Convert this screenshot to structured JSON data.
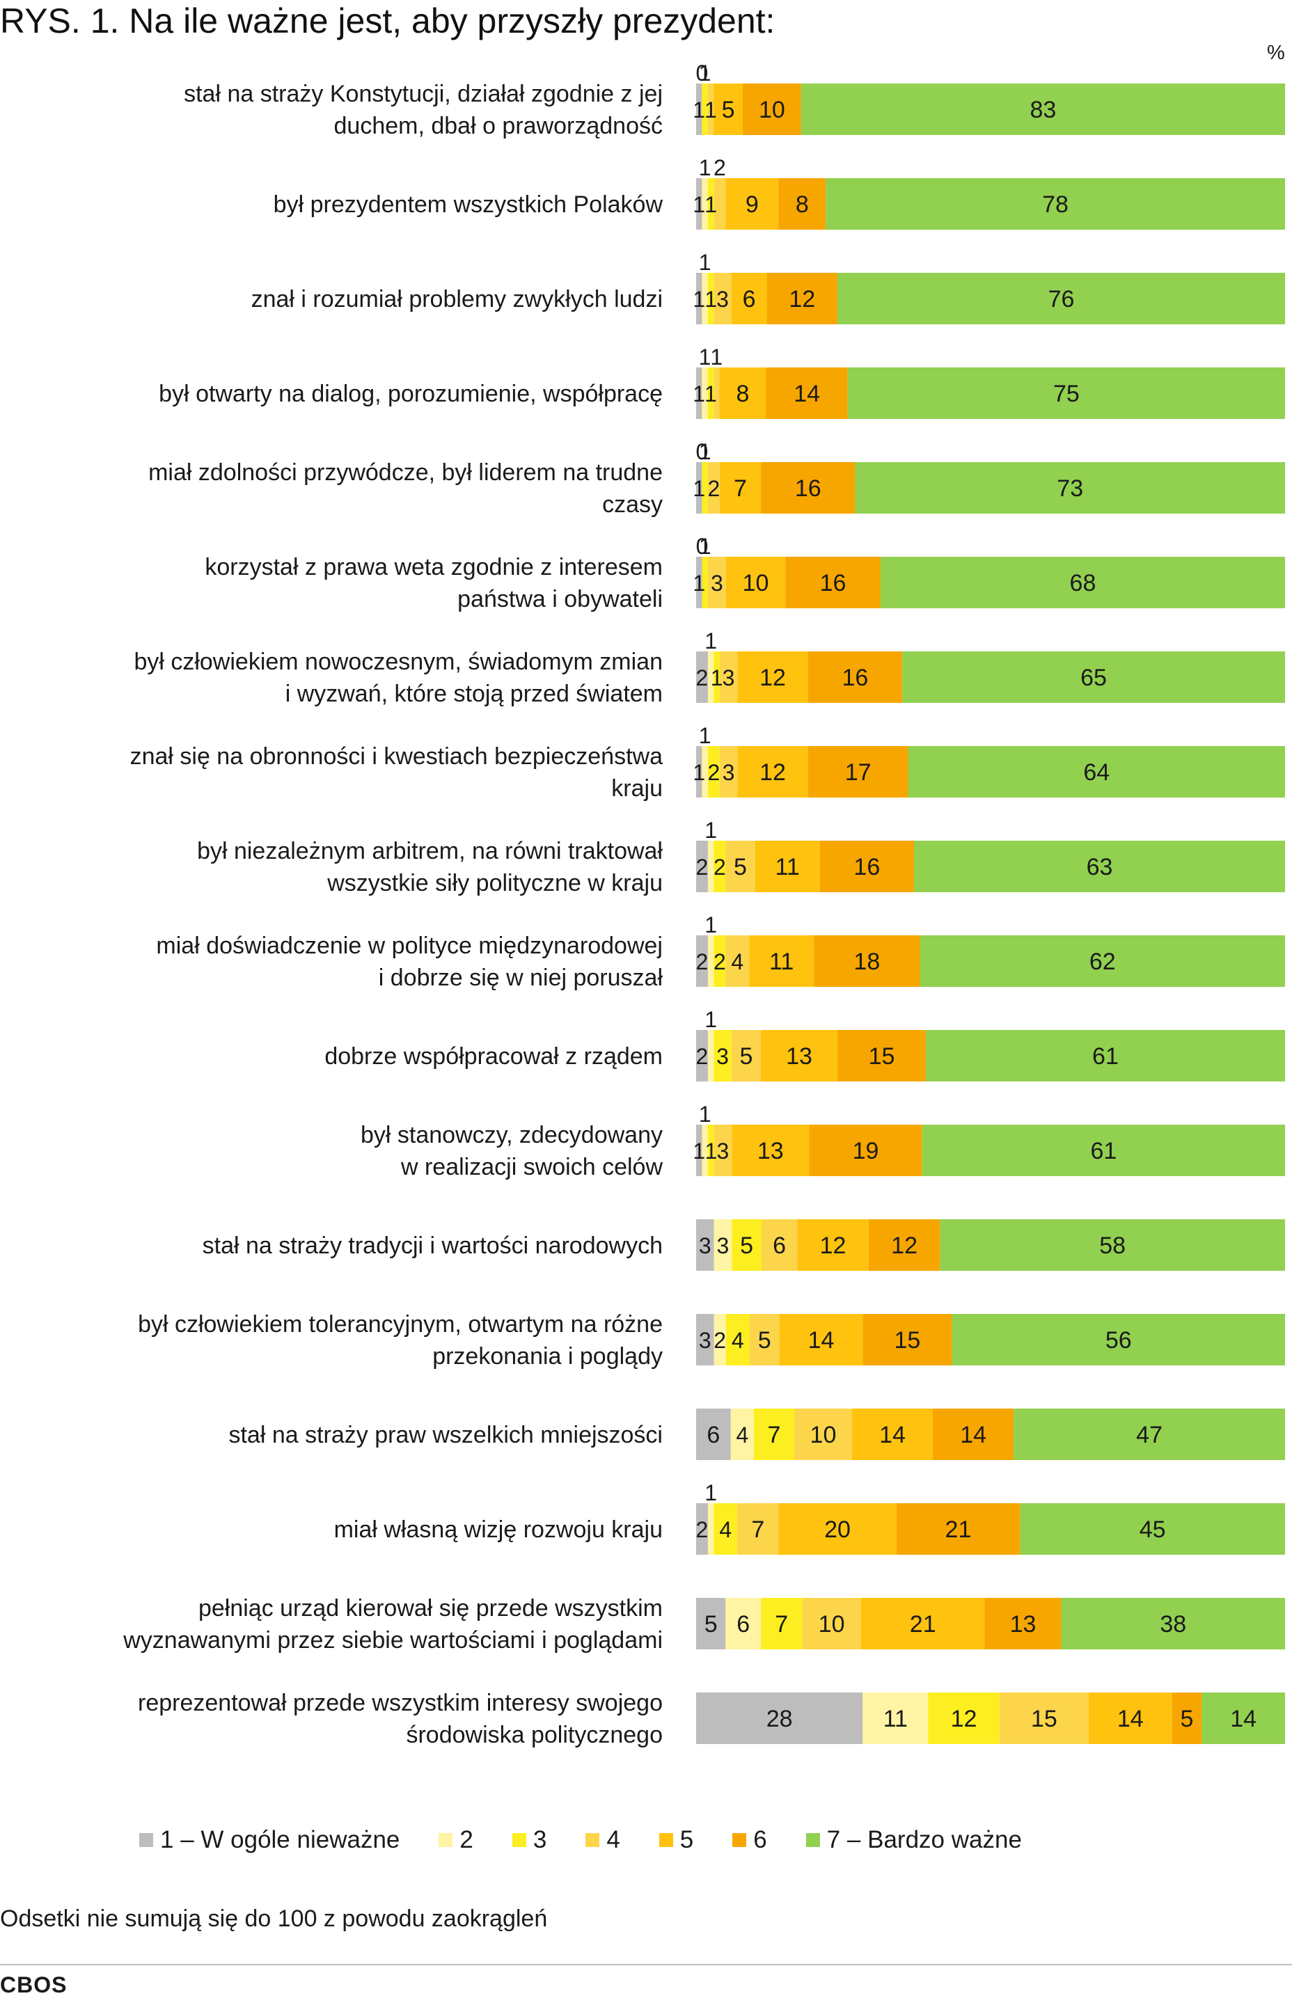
{
  "chart_data": {
    "type": "bar",
    "orientation": "horizontal-stacked-100",
    "title": "RYS. 1. Na ile ważne jest, aby przyszły prezydent:",
    "unit_label": "%",
    "legend": [
      {
        "name": "1 – W ogóle nieważne",
        "color": "#BDBDBD"
      },
      {
        "name": "2",
        "color": "#FFF4A3"
      },
      {
        "name": "3",
        "color": "#FCEE21"
      },
      {
        "name": "4",
        "color": "#FDD54B"
      },
      {
        "name": "5",
        "color": "#FFC20E"
      },
      {
        "name": "6",
        "color": "#F7A600"
      },
      {
        "name": "7 – Bardzo ważne",
        "color": "#92D050"
      }
    ],
    "categories": [
      [
        "stał na straży Konstytucji, działał zgodnie z jej",
        "duchem, dbał o praworządność"
      ],
      [
        "był prezydentem wszystkich Polaków"
      ],
      [
        "znał i rozumiał problemy zwykłych ludzi"
      ],
      [
        "był otwarty na dialog, porozumienie, współpracę"
      ],
      [
        "miał zdolności przywódcze, był liderem na trudne",
        "czasy"
      ],
      [
        "korzystał z prawa weta zgodnie z interesem",
        "państwa i obywateli"
      ],
      [
        "był człowiekiem nowoczesnym, świadomym zmian",
        "i wyzwań, które stoją przed światem"
      ],
      [
        "znał się na obronności i kwestiach bezpieczeństwa",
        "kraju"
      ],
      [
        "był niezależnym arbitrem, na równi traktował",
        "wszystkie siły polityczne w kraju"
      ],
      [
        "miał doświadczenie w polityce międzynarodowej",
        "i dobrze się w niej poruszał"
      ],
      [
        "dobrze współpracował z rządem"
      ],
      [
        "był stanowczy, zdecydowany",
        "w realizacji swoich celów"
      ],
      [
        "stał na straży tradycji i wartości narodowych"
      ],
      [
        "był człowiekiem tolerancyjnym, otwartym na różne",
        "przekonania i poglądy"
      ],
      [
        "stał na straży praw wszelkich mniejszości"
      ],
      [
        "miał własną wizję rozwoju kraju"
      ],
      [
        "pełniąc urząd kierował się przede wszystkim",
        "wyznawanymi przez siebie wartościami i poglądami"
      ],
      [
        "reprezentował przede wszystkim interesy swojego",
        "środowiska politycznego"
      ]
    ],
    "values": [
      [
        1,
        0,
        1,
        1,
        5,
        10,
        83
      ],
      [
        1,
        1,
        1,
        2,
        9,
        8,
        78
      ],
      [
        1,
        1,
        1,
        3,
        6,
        12,
        76
      ],
      [
        1,
        1,
        1,
        1,
        8,
        14,
        75
      ],
      [
        1,
        0,
        1,
        2,
        7,
        16,
        73
      ],
      [
        1,
        0,
        1,
        3,
        10,
        16,
        68
      ],
      [
        2,
        1,
        1,
        3,
        12,
        16,
        65
      ],
      [
        1,
        1,
        2,
        3,
        12,
        17,
        64
      ],
      [
        2,
        1,
        2,
        5,
        11,
        16,
        63
      ],
      [
        2,
        1,
        2,
        4,
        11,
        18,
        62
      ],
      [
        2,
        1,
        3,
        5,
        13,
        15,
        61
      ],
      [
        1,
        1,
        1,
        3,
        13,
        19,
        61
      ],
      [
        3,
        3,
        5,
        6,
        12,
        12,
        58
      ],
      [
        3,
        2,
        4,
        5,
        14,
        15,
        56
      ],
      [
        6,
        4,
        7,
        10,
        14,
        14,
        47
      ],
      [
        2,
        1,
        4,
        7,
        20,
        21,
        45
      ],
      [
        5,
        6,
        7,
        10,
        21,
        13,
        38
      ],
      [
        28,
        11,
        12,
        15,
        14,
        5,
        14
      ]
    ],
    "xlim": [
      0,
      100
    ],
    "legend_position": "bottom"
  },
  "note": "Odsetki nie sumują się do 100 z powodu zaokrągleń",
  "source": "CBOS"
}
